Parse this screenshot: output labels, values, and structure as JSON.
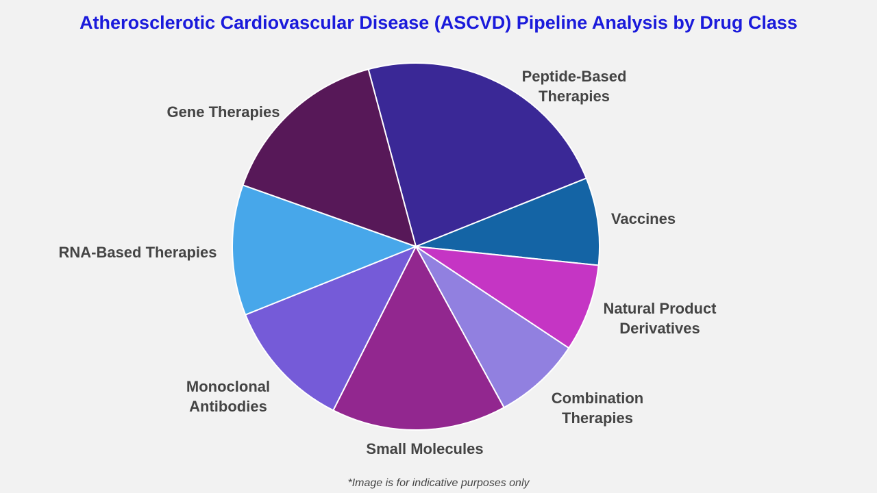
{
  "chart_data": {
    "type": "pie",
    "title": "Atherosclerotic Cardiovascular Disease (ASCVD) Pipeline Analysis by Drug Class",
    "start_angle_deg": -15,
    "direction": "clockwise",
    "slices": [
      {
        "label": "Peptide-Based Therapies",
        "value": 23.1,
        "color": "#3a2896"
      },
      {
        "label": "Vaccines",
        "value": 7.7,
        "color": "#1464a5"
      },
      {
        "label": "Natural Product Derivatives",
        "value": 7.7,
        "color": "#c535c4"
      },
      {
        "label": "Combination Therapies",
        "value": 7.7,
        "color": "#9180e0"
      },
      {
        "label": "Small Molecules",
        "value": 15.4,
        "color": "#92278f"
      },
      {
        "label": "Monoclonal Antibodies",
        "value": 11.5,
        "color": "#755bd8"
      },
      {
        "label": "RNA-Based Therapies",
        "value": 11.5,
        "color": "#47a7ea"
      },
      {
        "label": "Gene Therapies",
        "value": 15.4,
        "color": "#571858"
      }
    ],
    "legend": "none"
  },
  "footer": "*Image is for indicative purposes only"
}
